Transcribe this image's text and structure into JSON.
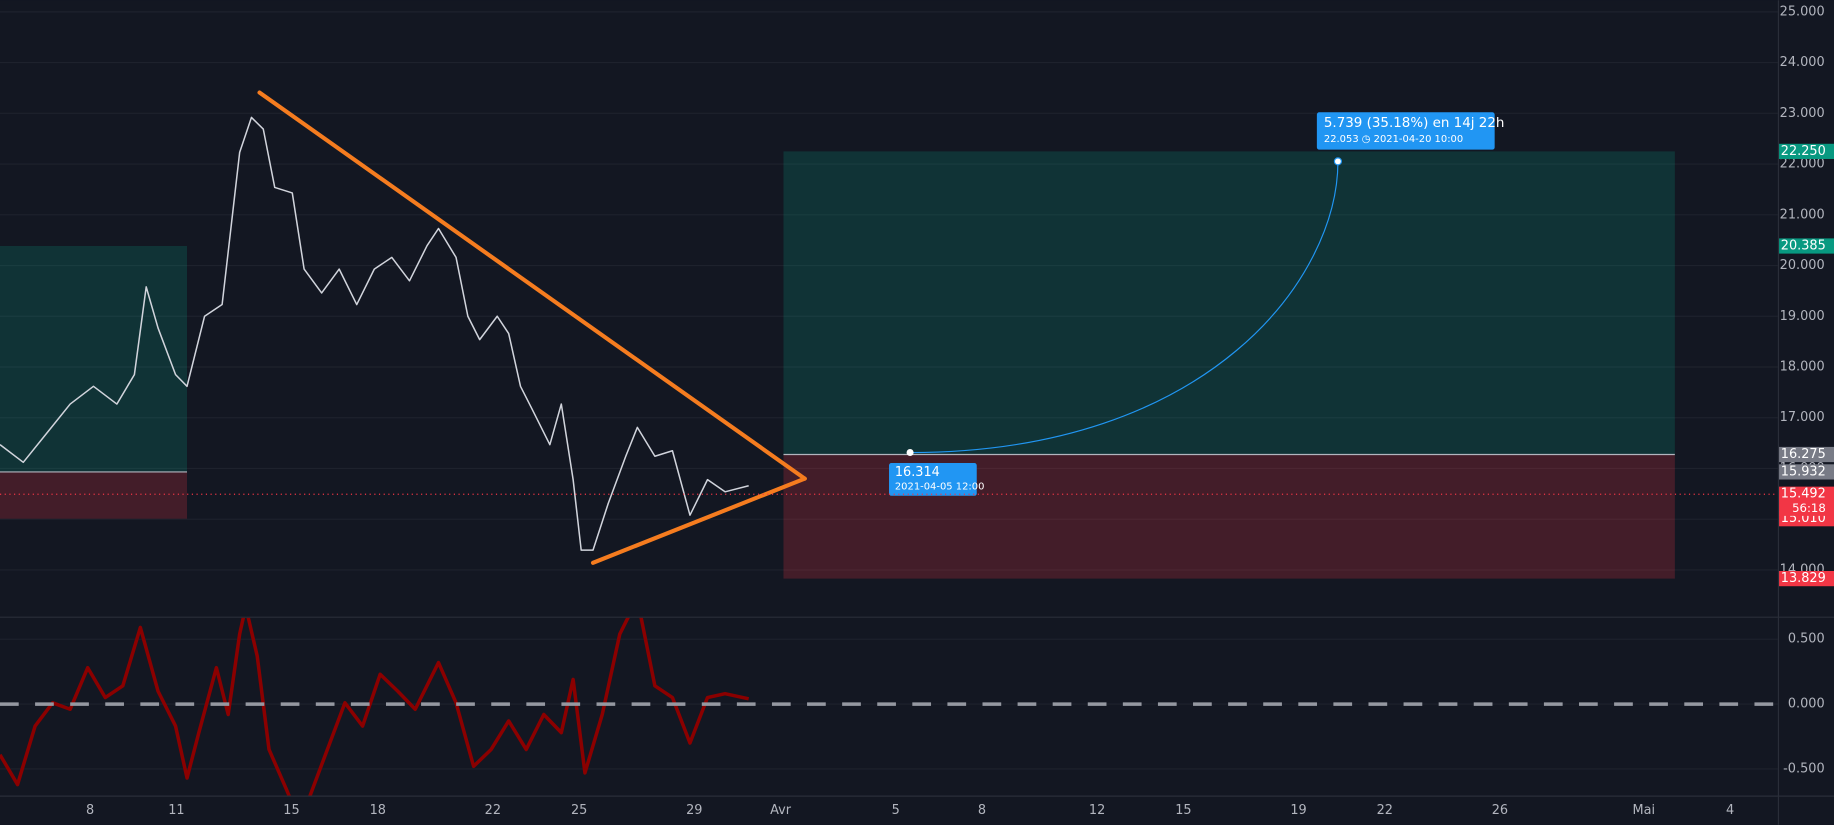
{
  "chart_data": [
    {
      "type": "line",
      "color": "#d1d4dc",
      "x": [
        4.87,
        5.68,
        6.5,
        7.31,
        8.12,
        8.93,
        9.54,
        9.95,
        10.36,
        10.97,
        11.37,
        11.98,
        12.59,
        13.2,
        13.61,
        14.02,
        14.42,
        15.03,
        15.44,
        16.05,
        16.66,
        17.27,
        17.88,
        18.49,
        19.1,
        19.71,
        20.11,
        20.72,
        21.13,
        21.54,
        22.15,
        22.55,
        22.96,
        23.37,
        23.98,
        24.38,
        24.79,
        25.07,
        25.48,
        26.01,
        26.62,
        27.02,
        27.63,
        28.24,
        28.85,
        29.46,
        30.07,
        30.89
      ],
      "values": [
        16.47,
        16.12,
        16.7,
        17.27,
        17.62,
        17.27,
        17.85,
        19.58,
        18.77,
        17.85,
        17.62,
        19.0,
        19.23,
        22.23,
        22.92,
        22.69,
        21.54,
        21.43,
        19.93,
        19.46,
        19.93,
        19.23,
        19.93,
        20.16,
        19.7,
        20.39,
        20.73,
        20.16,
        19.0,
        18.54,
        19.0,
        18.66,
        17.62,
        17.16,
        16.47,
        17.27,
        15.78,
        14.39,
        14.39,
        15.31,
        16.24,
        16.81,
        16.24,
        16.35,
        15.08,
        15.78,
        15.54,
        15.66
      ],
      "xlim": [
        4.87,
        66.66
      ],
      "xticks": [
        {
          "value": 8,
          "label": "8"
        },
        {
          "value": 11,
          "label": "11"
        },
        {
          "value": 15,
          "label": "15"
        },
        {
          "value": 18,
          "label": "18"
        },
        {
          "value": 22,
          "label": "22"
        },
        {
          "value": 25,
          "label": "25"
        },
        {
          "value": 29,
          "label": "29"
        },
        {
          "value": 32,
          "label": "Avr"
        },
        {
          "value": 36,
          "label": "5"
        },
        {
          "value": 39,
          "label": "8"
        },
        {
          "value": 43,
          "label": "12"
        },
        {
          "value": 46,
          "label": "15"
        },
        {
          "value": 50,
          "label": "19"
        },
        {
          "value": 53,
          "label": "22"
        },
        {
          "value": 57,
          "label": "26"
        },
        {
          "value": 62,
          "label": "Mai"
        },
        {
          "value": 65,
          "label": "4"
        }
      ],
      "ylim": [
        13.08,
        25.23
      ],
      "yticks": [
        {
          "value": 14,
          "label": "14.000"
        },
        {
          "value": 15,
          "label": "15.000"
        },
        {
          "value": 16,
          "label": "16.000"
        },
        {
          "value": 17,
          "label": "17.000"
        },
        {
          "value": 18,
          "label": "18.000"
        },
        {
          "value": 19,
          "label": "19.000"
        },
        {
          "value": 20,
          "label": "20.000"
        },
        {
          "value": 21,
          "label": "21.000"
        },
        {
          "value": 22,
          "label": "22.000"
        },
        {
          "value": 23,
          "label": "23.000"
        },
        {
          "value": 24,
          "label": "24.000"
        },
        {
          "value": 25,
          "label": "25.000"
        }
      ],
      "grid": true,
      "last_price": {
        "value": 15.492,
        "label": "15.492",
        "countdown": "56:18",
        "color": "#f23645"
      },
      "price_badges": [
        {
          "value": 22.25,
          "label": "22.250",
          "color": "#089981"
        },
        {
          "value": 20.385,
          "label": "20.385",
          "color": "#089981"
        },
        {
          "value": 16.275,
          "label": "16.275",
          "color": "#787b86"
        },
        {
          "value": 15.932,
          "label": "15.932",
          "color": "#787b86"
        },
        {
          "value": 15.01,
          "label": "15.010",
          "color": "#f23645"
        },
        {
          "value": 13.829,
          "label": "13.829",
          "color": "#f23645"
        }
      ],
      "trendlines": [
        {
          "x": [
            13.89,
            32.84
          ],
          "y": [
            23.41,
            15.8
          ]
        },
        {
          "x": [
            25.48,
            32.84
          ],
          "y": [
            14.14,
            15.8
          ]
        }
      ],
      "trendline_color": "#f57c1f",
      "positions": [
        {
          "x": [
            4.87,
            11.37
          ],
          "top": 20.385,
          "entry": 15.932,
          "stop": 15.01
        },
        {
          "x": [
            32.1,
            63.08
          ],
          "top": 22.25,
          "entry": 16.275,
          "stop": 13.829
        }
      ],
      "projection": {
        "start": {
          "x": 36.5,
          "y": 16.314,
          "label": "16.314",
          "date": "2021-04-05 12:00"
        },
        "end": {
          "x": 51.37,
          "y": 22.053,
          "label": "5.739 (35.18%) en 14j 22h",
          "detail": "22.053 ◷ 2021-04-20  10:00"
        },
        "color": "#2196f3"
      }
    },
    {
      "type": "line",
      "color": "#8b0000",
      "x": [
        4.87,
        5.48,
        6.09,
        6.7,
        7.31,
        7.92,
        8.53,
        9.14,
        9.75,
        10.36,
        10.97,
        11.37,
        11.78,
        12.39,
        12.8,
        13.2,
        13.41,
        13.81,
        14.22,
        14.83,
        15.24,
        15.64,
        16.25,
        16.86,
        17.47,
        18.08,
        18.69,
        19.3,
        20.11,
        20.72,
        21.33,
        21.94,
        22.55,
        23.16,
        23.77,
        24.38,
        24.79,
        25.2,
        25.8,
        26.41,
        27.02,
        27.63,
        28.24,
        28.85,
        29.46,
        30.07,
        30.89
      ],
      "values": [
        -0.39,
        -0.62,
        -0.17,
        0.01,
        -0.04,
        0.28,
        0.05,
        0.14,
        0.59,
        0.1,
        -0.17,
        -0.57,
        -0.22,
        0.28,
        -0.08,
        0.54,
        0.75,
        0.37,
        -0.35,
        -0.66,
        -0.88,
        -0.71,
        -0.35,
        0.01,
        -0.17,
        0.23,
        0.1,
        -0.04,
        0.32,
        0.01,
        -0.48,
        -0.35,
        -0.13,
        -0.35,
        -0.08,
        -0.22,
        0.19,
        -0.53,
        -0.08,
        0.54,
        0.81,
        0.14,
        0.05,
        -0.3,
        0.05,
        0.08,
        0.04
      ],
      "ylim": [
        -0.705,
        0.665
      ],
      "yticks": [
        {
          "value": 0.5,
          "label": "0.500"
        },
        {
          "value": 0,
          "label": "0.000"
        },
        {
          "value": -0.5,
          "label": "-0.500"
        }
      ],
      "zero_line": true
    }
  ]
}
